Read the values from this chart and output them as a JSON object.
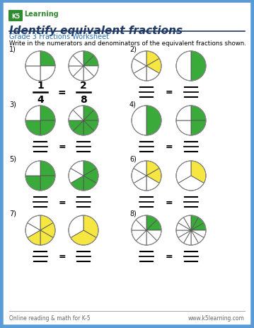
{
  "title": "Identify equivalent fractions",
  "subtitle": "Grade 3 Fractions Worksheet",
  "instruction": "Write in the numerators and denominators of the equivalent fractions shown.",
  "footer_left": "Online reading & math for K-5",
  "footer_right": "www.k5learning.com",
  "bg_color": "#ffffff",
  "border_color": "#5b9bd5",
  "title_color": "#1f3864",
  "subtitle_color": "#2e74b5",
  "green": "#3aaa3a",
  "yellow": "#f5e642",
  "problems": [
    {
      "num": "1)",
      "circles": [
        {
          "slices": 4,
          "filled": [
            1
          ],
          "color": "green"
        },
        {
          "slices": 8,
          "filled": [
            1,
            2
          ],
          "color": "green"
        }
      ],
      "answer": {
        "top1": "1",
        "bot1": "4",
        "top2": "2",
        "bot2": "8"
      },
      "show_answer": true
    },
    {
      "num": "2)",
      "circles": [
        {
          "slices": 6,
          "filled": [
            1,
            2
          ],
          "color": "yellow"
        },
        {
          "slices": 2,
          "filled": [
            1
          ],
          "color": "green"
        }
      ],
      "show_answer": false
    },
    {
      "num": "3)",
      "circles": [
        {
          "slices": 4,
          "filled": [
            1,
            2,
            3
          ],
          "color": "green"
        },
        {
          "slices": 8,
          "filled": [
            1,
            2,
            3,
            4,
            5,
            6
          ],
          "color": "green"
        }
      ],
      "show_answer": false
    },
    {
      "num": "4)",
      "circles": [
        {
          "slices": 2,
          "filled": [
            1
          ],
          "color": "green"
        },
        {
          "slices": 4,
          "filled": [
            1,
            2
          ],
          "color": "green"
        }
      ],
      "show_answer": false
    },
    {
      "num": "5)",
      "circles": [
        {
          "slices": 4,
          "filled": [
            1,
            2,
            3
          ],
          "color": "green"
        },
        {
          "slices": 6,
          "filled": [
            1,
            2,
            3,
            4
          ],
          "color": "green"
        }
      ],
      "show_answer": false
    },
    {
      "num": "6)",
      "circles": [
        {
          "slices": 6,
          "filled": [
            1,
            2
          ],
          "color": "yellow"
        },
        {
          "slices": 3,
          "filled": [
            1
          ],
          "color": "yellow"
        }
      ],
      "show_answer": false
    },
    {
      "num": "7)",
      "circles": [
        {
          "slices": 6,
          "filled": [
            1,
            2,
            3,
            4
          ],
          "color": "yellow"
        },
        {
          "slices": 3,
          "filled": [
            1,
            2
          ],
          "color": "yellow"
        }
      ],
      "show_answer": false
    },
    {
      "num": "8)",
      "circles": [
        {
          "slices": 8,
          "filled": [
            1,
            2
          ],
          "color": "green"
        },
        {
          "slices": 12,
          "filled": [
            1,
            2,
            3
          ],
          "color": "green"
        }
      ],
      "show_answer": false
    }
  ]
}
